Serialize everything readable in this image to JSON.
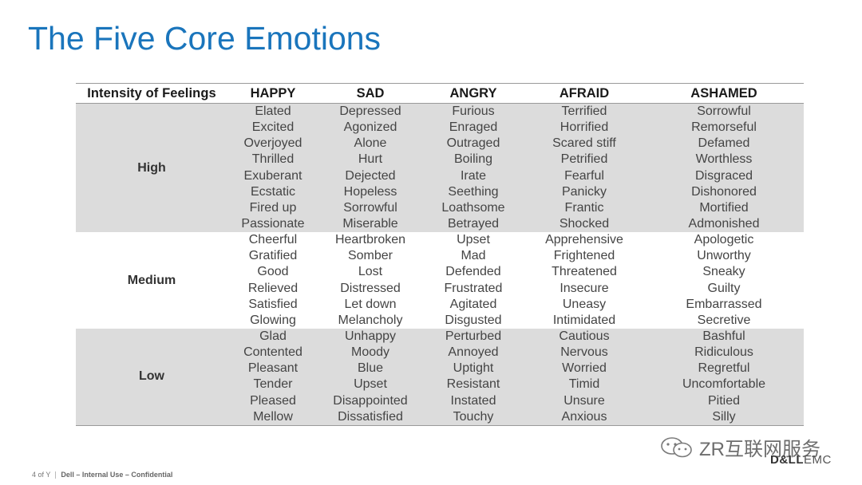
{
  "slide": {
    "title": "The Five Core Emotions"
  },
  "table": {
    "headers": [
      "Intensity of Feelings",
      "HAPPY",
      "SAD",
      "ANGRY",
      "AFRAID",
      "ASHAMED"
    ],
    "groups": [
      {
        "level": "High",
        "shaded": true,
        "columns": [
          [
            "Elated",
            "Excited",
            "Overjoyed",
            "Thrilled",
            "Exuberant",
            "Ecstatic",
            "Fired up",
            "Passionate"
          ],
          [
            "Depressed",
            "Agonized",
            "Alone",
            "Hurt",
            "Dejected",
            "Hopeless",
            "Sorrowful",
            "Miserable"
          ],
          [
            "Furious",
            "Enraged",
            "Outraged",
            "Boiling",
            "Irate",
            "Seething",
            "Loathsome",
            "Betrayed"
          ],
          [
            "Terrified",
            "Horrified",
            "Scared stiff",
            "Petrified",
            "Fearful",
            "Panicky",
            "Frantic",
            "Shocked"
          ],
          [
            "Sorrowful",
            "Remorseful",
            "Defamed",
            "Worthless",
            "Disgraced",
            "Dishonored",
            "Mortified",
            "Admonished"
          ]
        ]
      },
      {
        "level": "Medium",
        "shaded": false,
        "columns": [
          [
            "Cheerful",
            "Gratified",
            "Good",
            "Relieved",
            "Satisfied",
            "Glowing"
          ],
          [
            "Heartbroken",
            "Somber",
            "Lost",
            "Distressed",
            "Let down",
            "Melancholy"
          ],
          [
            "Upset",
            "Mad",
            "Defended",
            "Frustrated",
            "Agitated",
            "Disgusted"
          ],
          [
            "Apprehensive",
            "Frightened",
            "Threatened",
            "Insecure",
            "Uneasy",
            "Intimidated"
          ],
          [
            "Apologetic",
            "Unworthy",
            "Sneaky",
            "Guilty",
            "Embarrassed",
            "Secretive"
          ]
        ]
      },
      {
        "level": "Low",
        "shaded": true,
        "columns": [
          [
            "Glad",
            "Contented",
            "Pleasant",
            "Tender",
            "Pleased",
            "Mellow"
          ],
          [
            "Unhappy",
            "Moody",
            "Blue",
            "Upset",
            "Disappointed",
            "Dissatisfied"
          ],
          [
            "Perturbed",
            "Annoyed",
            "Uptight",
            "Resistant",
            "Instated",
            "Touchy"
          ],
          [
            "Cautious",
            "Nervous",
            "Worried",
            "Timid",
            "Unsure",
            "Anxious"
          ],
          [
            "Bashful",
            "Ridiculous",
            "Regretful",
            "Uncomfortable",
            "Pitied",
            "Silly"
          ]
        ]
      }
    ]
  },
  "footer": {
    "page": "4 of Y",
    "confidentiality": "Dell – Internal Use – Confidential"
  },
  "watermark": {
    "icon": "wechat-icon",
    "text": "ZR互联网服务"
  },
  "brand": {
    "name_bold": "D&LL",
    "name_rest": "EMC"
  }
}
